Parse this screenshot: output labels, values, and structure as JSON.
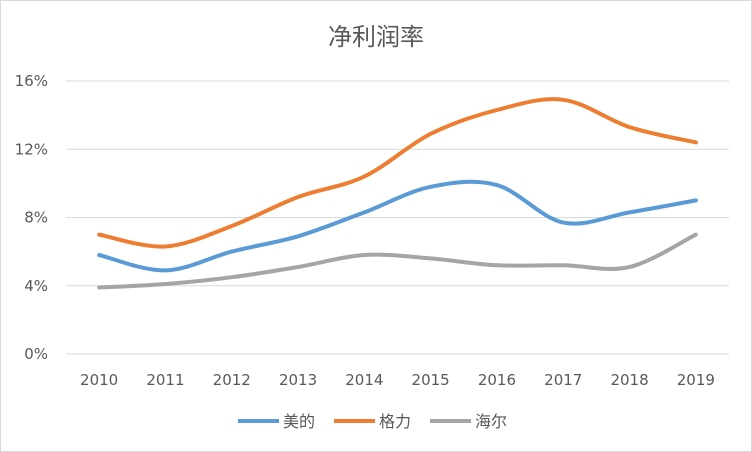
{
  "chart_data": {
    "type": "line",
    "title": "净利润率",
    "xlabel": "",
    "ylabel": "",
    "categories": [
      "2010",
      "2011",
      "2012",
      "2013",
      "2014",
      "2015",
      "2016",
      "2017",
      "2018",
      "2019"
    ],
    "ylim": [
      0,
      16
    ],
    "yticks": [
      0,
      4,
      8,
      12,
      16
    ],
    "ytick_labels": [
      "0%",
      "4%",
      "8%",
      "12%",
      "16%"
    ],
    "grid": true,
    "legend_position": "bottom",
    "series": [
      {
        "name": "美的",
        "color": "#5b9bd5",
        "values": [
          5.8,
          4.9,
          6.0,
          6.9,
          8.3,
          9.8,
          9.9,
          7.7,
          8.3,
          9.0
        ]
      },
      {
        "name": "格力",
        "color": "#ed7d31",
        "values": [
          7.0,
          6.3,
          7.5,
          9.2,
          10.4,
          12.9,
          14.3,
          14.9,
          13.3,
          12.4
        ]
      },
      {
        "name": "海尔",
        "color": "#a5a5a5",
        "values": [
          3.9,
          4.1,
          4.5,
          5.1,
          5.8,
          5.6,
          5.2,
          5.2,
          5.1,
          7.0
        ]
      }
    ]
  }
}
